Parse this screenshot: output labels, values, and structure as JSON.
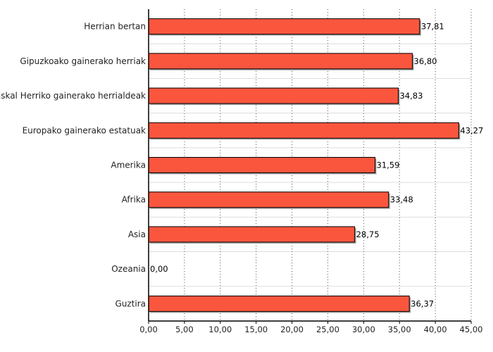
{
  "chart_data": {
    "type": "bar",
    "orientation": "horizontal",
    "title": "",
    "xlabel": "",
    "ylabel": "",
    "categories": [
      "Herrian bertan",
      "Gipuzkoako gainerako herriak",
      "Euskal Herriko gainerako herrialdeak",
      "Europako gainerako estatuak",
      "Amerika",
      "Afrika",
      "Asia",
      "Ozeania",
      "Guztira"
    ],
    "values": [
      37.81,
      36.8,
      34.83,
      43.27,
      31.59,
      33.48,
      28.75,
      0.0,
      36.37
    ],
    "value_labels": [
      "37,81",
      "36,80",
      "34,83",
      "43,27",
      "31,59",
      "33,48",
      "28,75",
      "0,00",
      "36,37"
    ],
    "xlim": [
      0,
      45
    ],
    "x_ticks": [
      0,
      5,
      10,
      15,
      20,
      25,
      30,
      35,
      40,
      45
    ],
    "x_tick_labels": [
      "0,00",
      "5,00",
      "10,00",
      "15,00",
      "20,00",
      "25,00",
      "30,00",
      "35,00",
      "40,00",
      "45,00"
    ],
    "grid": "vertical dotted",
    "bar_color": "#fa563e",
    "bar_shadow_color": "#a0a0a0",
    "axis_color": "#000000",
    "gridline_color": "#555555",
    "row_separator_color": "#dddddd"
  }
}
